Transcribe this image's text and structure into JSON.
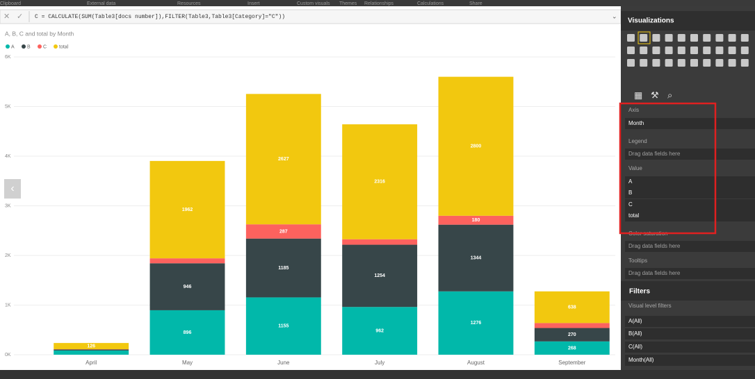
{
  "ribbon": [
    "Clipboard",
    "External data",
    "Resources",
    "Insert",
    "Custom visuals",
    "Themes",
    "Relationships",
    "Calculations",
    "Share"
  ],
  "formula": "C = CALCULATE(SUM(Table3[docs number]),FILTER(Table3,Table3[Category]=\"C\"))",
  "chart_data": {
    "type": "stacked_bar",
    "title": "A, B, C and total by Month",
    "categories": [
      "April",
      "May",
      "June",
      "July",
      "August",
      "September"
    ],
    "series": [
      {
        "name": "A",
        "color": "#01b8aa",
        "values": [
          85,
          896,
          1155,
          962,
          1276,
          268
        ]
      },
      {
        "name": "B",
        "color": "#374649",
        "values": [
          20,
          946,
          1185,
          1254,
          1344,
          270
        ]
      },
      {
        "name": "C",
        "color": "#fd625e",
        "values": [
          5,
          100,
          287,
          110,
          180,
          100
        ]
      },
      {
        "name": "total",
        "color": "#f2c80f",
        "values": [
          126,
          1962,
          2627,
          2316,
          2800,
          638
        ]
      }
    ],
    "ylim": [
      0,
      6000
    ],
    "yticks": [
      {
        "value": 0,
        "label": "0K"
      },
      {
        "value": 1000,
        "label": "1K"
      },
      {
        "value": 2000,
        "label": "2K"
      },
      {
        "value": 3000,
        "label": "3K"
      },
      {
        "value": 4000,
        "label": "4K"
      },
      {
        "value": 5000,
        "label": "5K"
      },
      {
        "value": 6000,
        "label": "6K"
      }
    ],
    "grid": true,
    "legend": "top-left"
  },
  "panel": {
    "title": "Visualizations",
    "axis": "Axis",
    "axis_field": "Month",
    "legend": "Legend",
    "drag": "Drag data fields here",
    "value": "Value",
    "value_fields": [
      "A",
      "B",
      "C",
      "total"
    ],
    "color_saturation": "Color saturation",
    "tooltips": "Tooltips",
    "filters": "Filters",
    "visual_filters": "Visual level filters",
    "filter_items": [
      "A(All)",
      "B(All)",
      "C(All)",
      "Month(All)"
    ]
  }
}
